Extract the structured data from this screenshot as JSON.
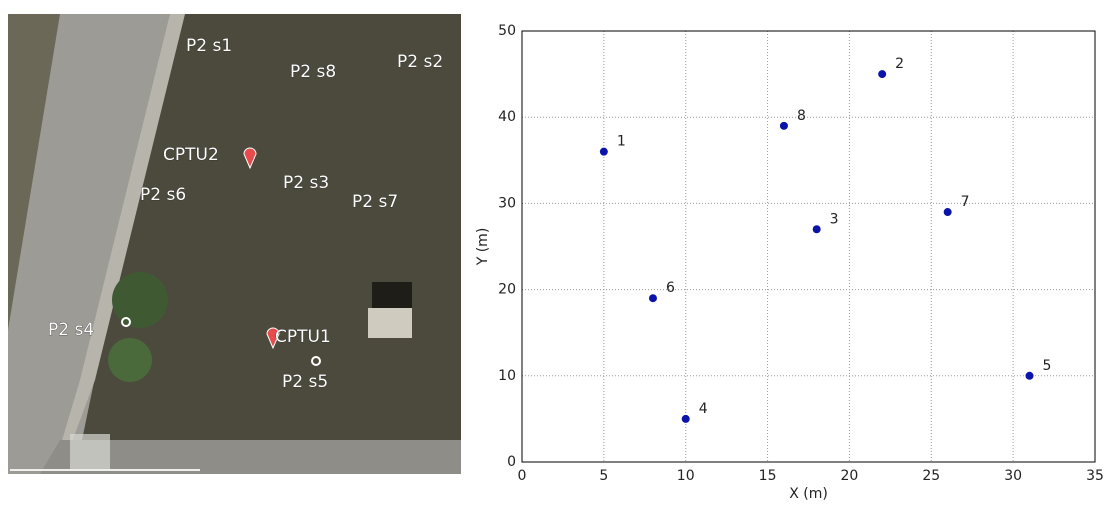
{
  "photo": {
    "labels": [
      "P2 s1",
      "P2 s8",
      "P2 s2",
      "CPTU2",
      "P2 s3",
      "P2 s7",
      "P2 s6",
      "P2 s4",
      "CPTU1",
      "P2 s5"
    ]
  },
  "chart_data": {
    "type": "scatter",
    "x_label": "X (m)",
    "y_label": "Y (m)",
    "series": [
      {
        "name": null,
        "color": "#0b14a8",
        "x": [
          5,
          22,
          18,
          10,
          31,
          8,
          26,
          16
        ],
        "values": [
          36,
          45,
          27,
          5,
          10,
          19,
          29,
          39
        ],
        "point_labels": [
          "1",
          "2",
          "3",
          "4",
          "5",
          "6",
          "7",
          "8"
        ]
      }
    ],
    "xlim": [
      0,
      35
    ],
    "xticks": [
      0,
      5,
      10,
      15,
      20,
      25,
      30,
      35
    ],
    "ylim": [
      0,
      50
    ],
    "yticks": [
      0,
      10,
      20,
      30,
      40,
      50
    ],
    "grid": true
  }
}
